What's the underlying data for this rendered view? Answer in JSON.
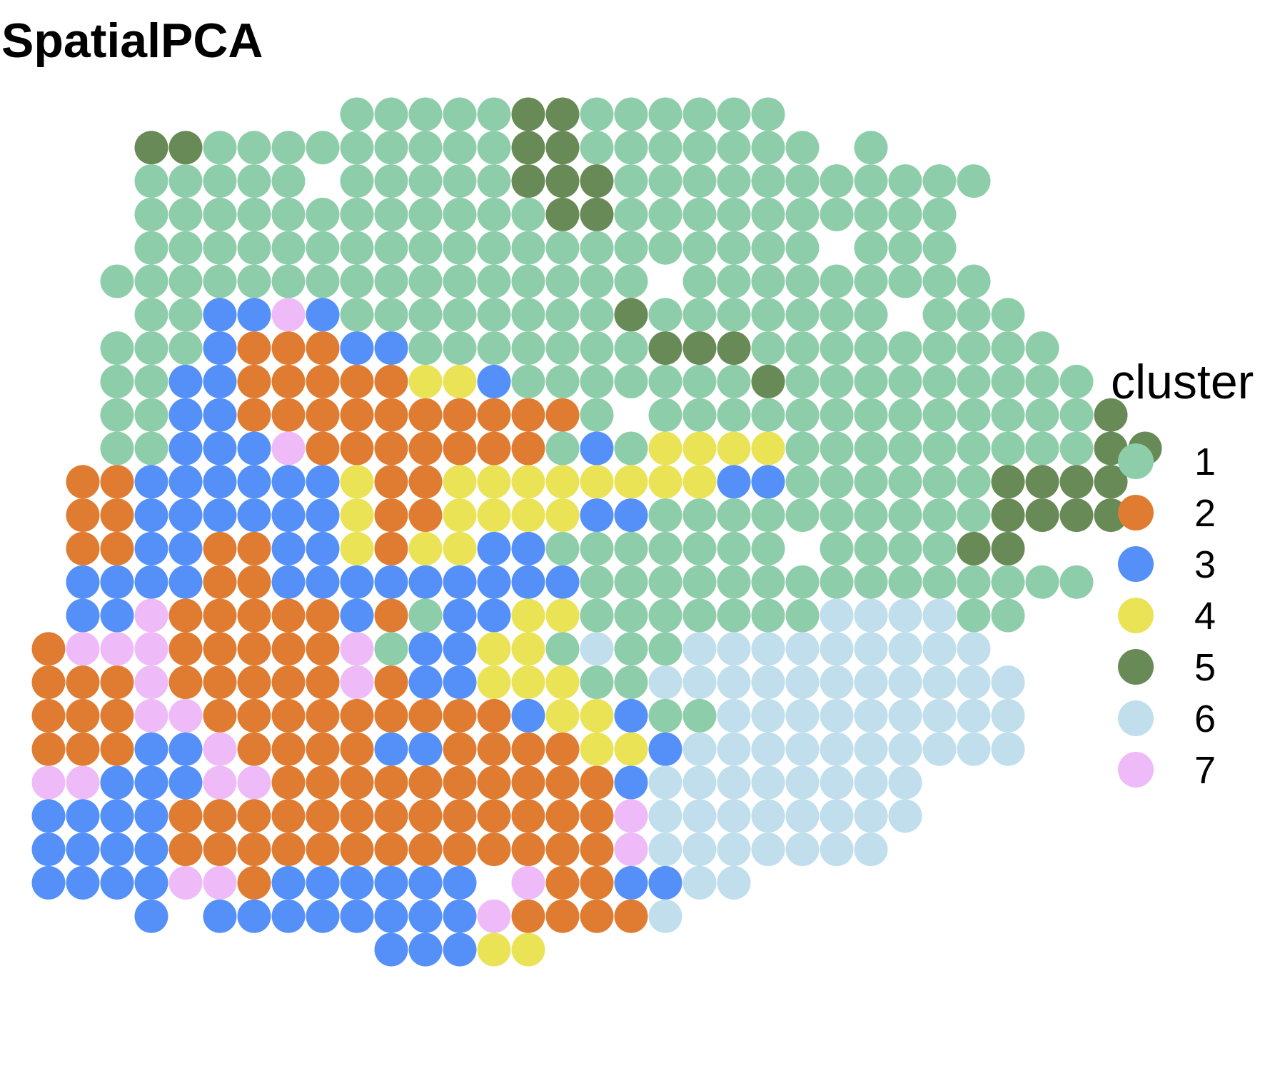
{
  "chart_data": {
    "type": "scatter",
    "title": "SpatialPCA",
    "xlabel": "",
    "ylabel": "",
    "grid": false,
    "legend_position": "right",
    "legend": {
      "title": "cluster",
      "entries": [
        {
          "label": "1",
          "color": "#8ECDAA"
        },
        {
          "label": "2",
          "color": "#E07C32"
        },
        {
          "label": "3",
          "color": "#5590F8"
        },
        {
          "label": "4",
          "color": "#EAE355"
        },
        {
          "label": "5",
          "color": "#688A56"
        },
        {
          "label": "6",
          "color": "#C0DEEC"
        },
        {
          "label": "7",
          "color": "#EEBAF8"
        }
      ]
    },
    "rows": [
      "_________1111155111111",
      "___55111111111551111111_1",
      "___11111_1111155511111111111",
      "___111111111111551111111111",
      "___11111111111111111111_111",
      "__1111111111111111_111111111",
      "___1133731111111151111111_111",
      "__1113222331111111555111111111",
      "__11332222244311111115111111111",
      "__113322222222221_11111111111115",
      "__1133372222222131444411111111155",
      "_2233333342244444444331111115555",
      "_2233333342244443311111111115555",
      "_223322334244331111111_111155",
      "_333322333333333111111111111111",
      "_3372222232133441111111666611",
      "2777222227133441611666666666",
      "22272222272334441166666666666",
      "22277222222222344311666666666",
      "22233722223322224436666666666",
      "77333772222222222366666666",
      "33332222222222222766666666",
      "3333222222222222276666666",
      "3333772333333_7223366",
      "___3_33333333722226",
      "__________33344"
    ]
  }
}
